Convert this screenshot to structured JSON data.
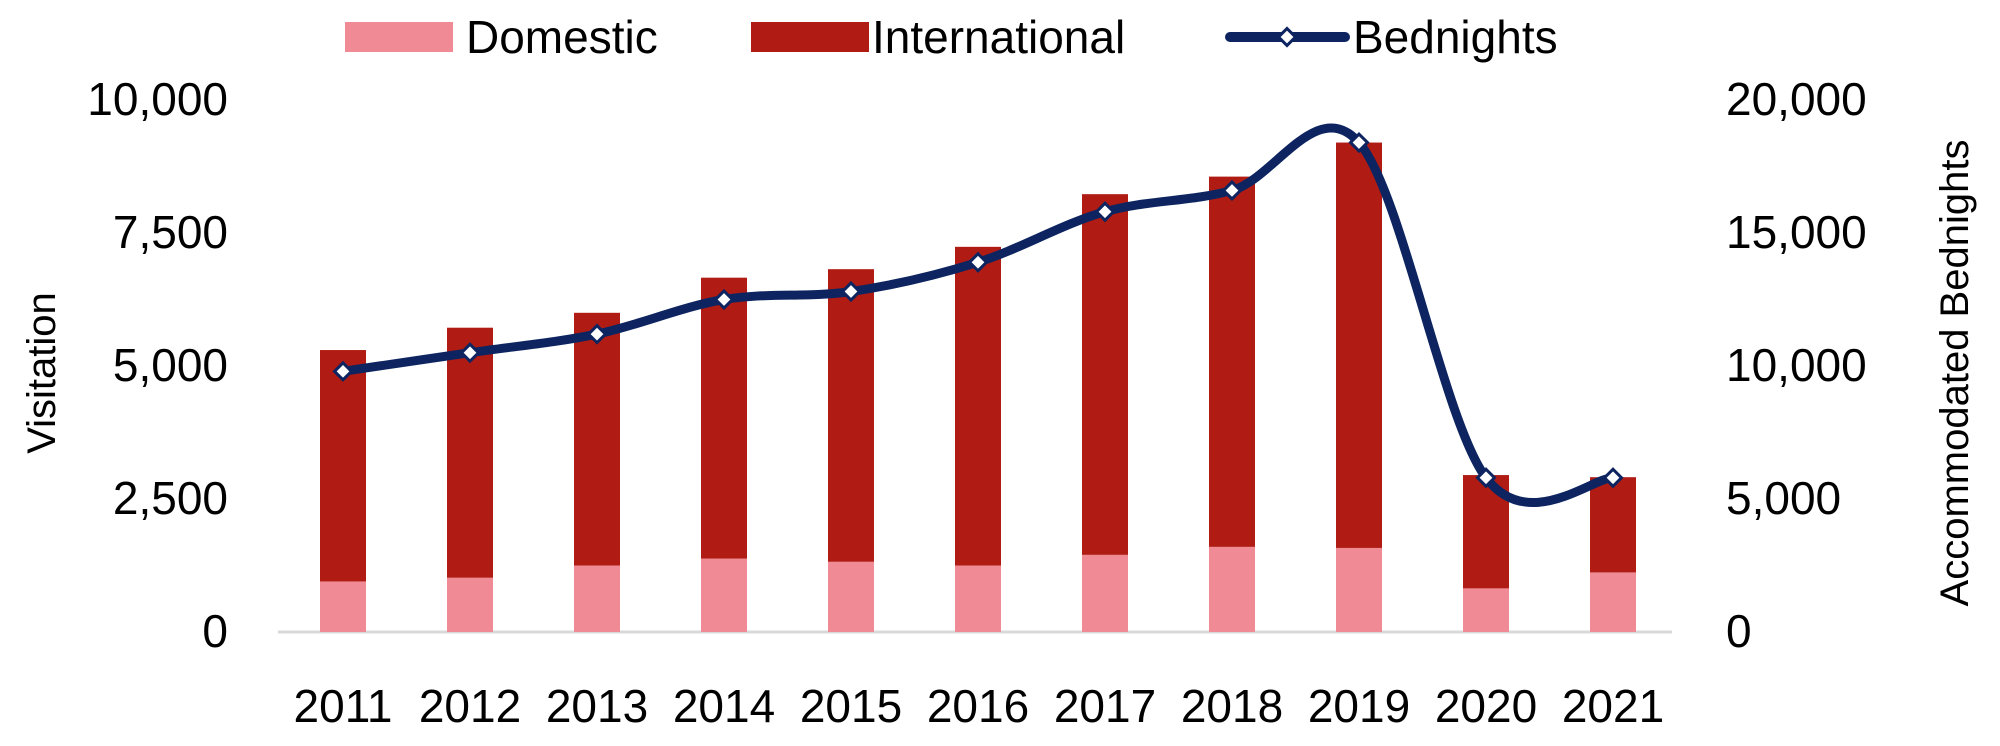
{
  "chart_data": {
    "type": "bar",
    "stacked": true,
    "categories": [
      "2011",
      "2012",
      "2013",
      "2014",
      "2015",
      "2016",
      "2017",
      "2018",
      "2019",
      "2020",
      "2021"
    ],
    "series": [
      {
        "name": "Domestic",
        "axis": "left",
        "kind": "bar",
        "color": "#F08B96",
        "values": [
          950,
          1020,
          1250,
          1380,
          1320,
          1250,
          1450,
          1600,
          1580,
          820,
          1120
        ]
      },
      {
        "name": "International",
        "axis": "left",
        "kind": "bar",
        "color": "#B01C14",
        "values": [
          4350,
          4700,
          4750,
          5280,
          5500,
          5990,
          6780,
          6960,
          7620,
          2130,
          1790
        ]
      },
      {
        "name": "Bednights",
        "axis": "right",
        "kind": "line",
        "color": "#0D2460",
        "values": [
          9800,
          10500,
          11200,
          12500,
          12800,
          13900,
          15800,
          16600,
          18400,
          5800,
          5800
        ]
      }
    ],
    "left_axis": {
      "label": "Visitation",
      "range": [
        0,
        10000
      ],
      "ticks": [
        "0",
        "2,500",
        "5,000",
        "7,500",
        "10,000"
      ]
    },
    "right_axis": {
      "label": "Accommodated Bednights",
      "range": [
        0,
        20000
      ],
      "ticks": [
        "0",
        "5,000",
        "10,000",
        "15,000",
        "20,000"
      ]
    },
    "legend": {
      "position": "top",
      "entries": [
        "Domestic",
        "International",
        "Bednights"
      ]
    },
    "grid": false
  }
}
